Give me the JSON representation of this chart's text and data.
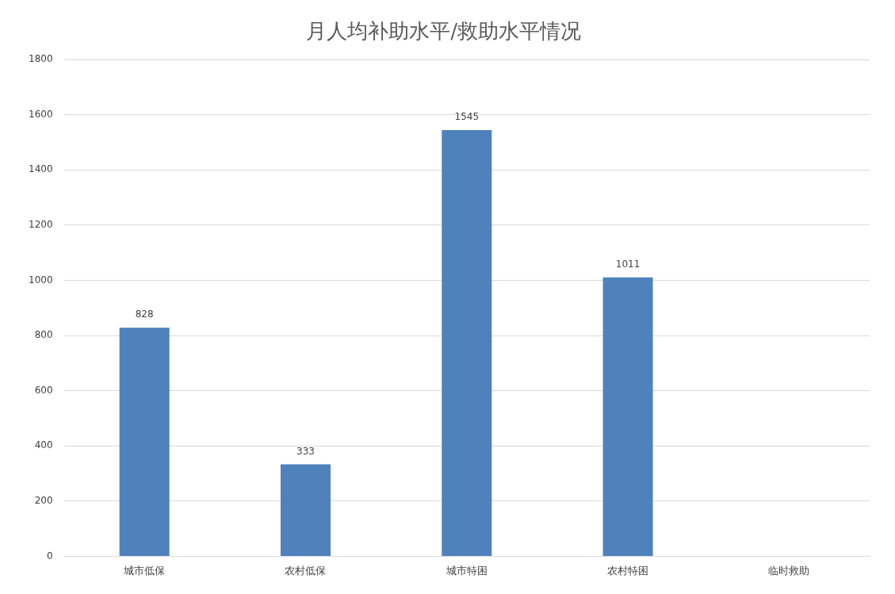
{
  "chart_data": {
    "type": "bar",
    "title": "月人均补助水平/救助水平情况",
    "categories": [
      "城市低保",
      "农村低保",
      "城市特困",
      "农村特困",
      "临时救助"
    ],
    "values": [
      828,
      333,
      1545,
      1011,
      null
    ],
    "color": "#4f81bd",
    "ylim": [
      0,
      1800
    ],
    "yticks": [
      0,
      200,
      400,
      600,
      800,
      1000,
      1200,
      1400,
      1600,
      1800
    ],
    "grid": "y",
    "legend": false,
    "data_labels": true
  }
}
